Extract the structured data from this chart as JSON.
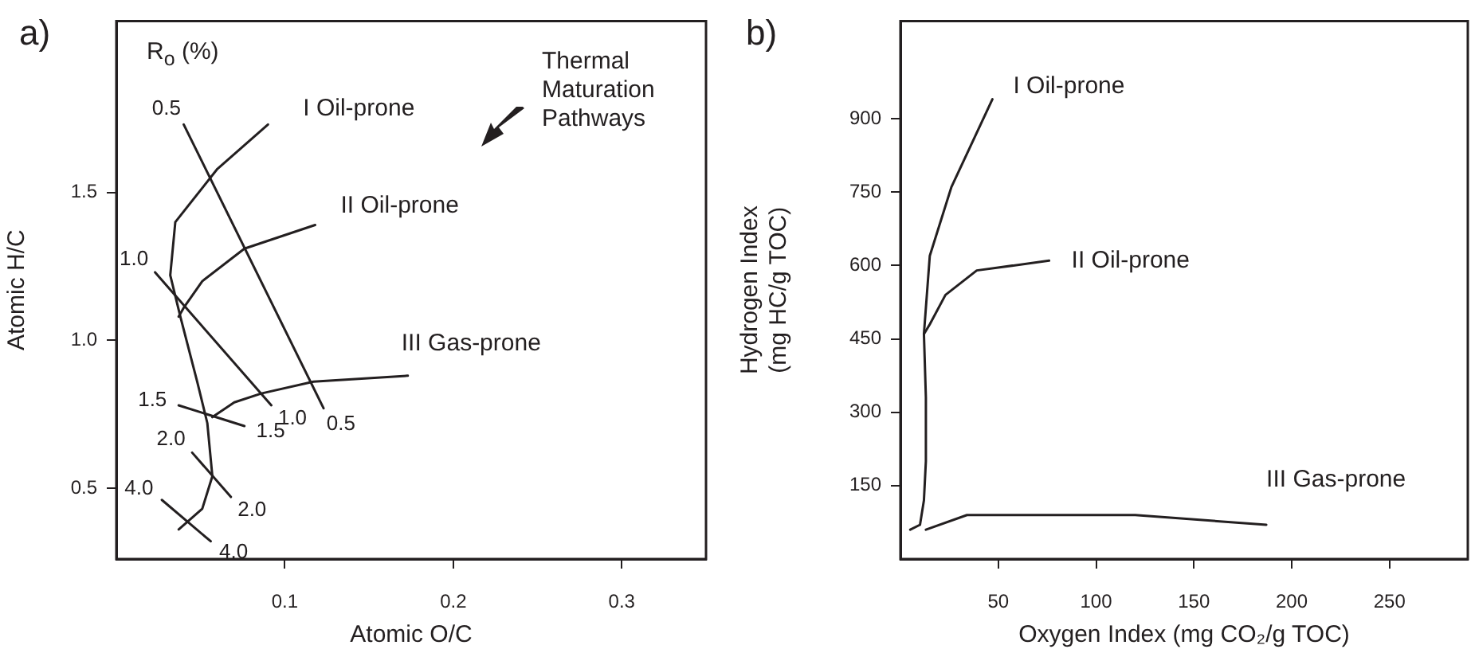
{
  "chart_data": [
    {
      "type": "line",
      "title": "a)",
      "xlabel": "Atomic O/C",
      "ylabel": "Atomic H/C",
      "xlim": [
        0,
        0.35
      ],
      "ylim": [
        0.26,
        2.08
      ],
      "xticks": [
        0.1,
        0.2,
        0.3
      ],
      "yticks": [
        0.5,
        {
          "value": 1,
          "label": "1.0"
        },
        1.5
      ],
      "grid": false,
      "legend": false,
      "marker": "none",
      "line_style": "solid",
      "series": [
        {
          "name": "I Oil-prone",
          "color": "#231f20",
          "x": [
            0.09,
            0.06,
            0.035,
            0.032,
            0.038,
            0.048,
            0.054,
            0.057,
            0.051,
            0.037
          ],
          "values": [
            1.73,
            1.58,
            1.4,
            1.22,
            1.08,
            0.86,
            0.72,
            0.54,
            0.43,
            0.36
          ]
        },
        {
          "name": "II Oil-prone",
          "color": "#231f20",
          "x": [
            0.118,
            0.076,
            0.051,
            0.04,
            0.037
          ],
          "values": [
            1.39,
            1.31,
            1.2,
            1.11,
            1.08
          ]
        },
        {
          "name": "III Gas-prone",
          "color": "#231f20",
          "x": [
            0.173,
            0.117,
            0.086,
            0.07,
            0.057
          ],
          "values": [
            0.88,
            0.86,
            0.82,
            0.79,
            0.74
          ]
        },
        {
          "color": "#231f20",
          "x": [
            0.04,
            0.123
          ],
          "values": [
            1.73,
            0.77
          ]
        },
        {
          "color": "#231f20",
          "x": [
            0.023,
            0.092
          ],
          "values": [
            1.23,
            0.78
          ]
        },
        {
          "color": "#231f20",
          "x": [
            0.037,
            0.076
          ],
          "values": [
            0.78,
            0.71
          ]
        },
        {
          "color": "#231f20",
          "x": [
            0.045,
            0.068
          ],
          "values": [
            0.62,
            0.47
          ]
        },
        {
          "color": "#231f20",
          "x": [
            0.027,
            0.056
          ],
          "values": [
            0.46,
            0.32
          ]
        }
      ],
      "annotations": [
        "R$_{o}$ (%)",
        "Thermal Maturation Pathways",
        {
          "text": "0.5",
          "x": 0.04,
          "y": 1.73
        },
        {
          "text": "0.5",
          "x": 0.123,
          "y": 0.77
        },
        {
          "text": "1.0",
          "x": 0.023,
          "y": 1.23
        },
        {
          "text": "1.0",
          "x": 0.092,
          "y": 0.78
        },
        {
          "text": "1.5",
          "x": 0.037,
          "y": 0.78
        },
        {
          "text": "1.5",
          "x": 0.076,
          "y": 0.71
        },
        {
          "text": "2.0",
          "x": 0.045,
          "y": 0.62
        },
        {
          "text": "2.0",
          "x": 0.068,
          "y": 0.47
        },
        {
          "text": "4.0",
          "x": 0.027,
          "y": 0.46
        },
        {
          "text": "4.0",
          "x": 0.056,
          "y": 0.32
        }
      ]
    },
    {
      "type": "line",
      "title": "b)",
      "xlabel": "Oxygen Index (mg CO₂/g TOC)",
      "ylabel": "Hydrogen Index\n(mg HC/g TOC)",
      "xlim": [
        0,
        290
      ],
      "ylim": [
        0,
        1100
      ],
      "xticks": [
        50,
        100,
        150,
        200,
        250
      ],
      "yticks": [
        150,
        300,
        450,
        600,
        750,
        900
      ],
      "grid": false,
      "legend": false,
      "marker": "none",
      "line_style": "solid",
      "series": [
        {
          "name": "I Oil-prone",
          "color": "#231f20",
          "x": [
            47,
            26,
            15,
            12,
            13,
            13,
            12,
            10,
            5
          ],
          "values": [
            940,
            760,
            620,
            460,
            330,
            200,
            120,
            70,
            60
          ]
        },
        {
          "name": "II Oil-prone",
          "color": "#231f20",
          "x": [
            76,
            39,
            23,
            15,
            12
          ],
          "values": [
            610,
            590,
            540,
            480,
            460
          ]
        },
        {
          "name": "III Gas-prone",
          "color": "#231f20",
          "x": [
            187,
            120,
            66,
            34,
            13
          ],
          "values": [
            70,
            90,
            90,
            90,
            60
          ]
        }
      ]
    }
  ]
}
